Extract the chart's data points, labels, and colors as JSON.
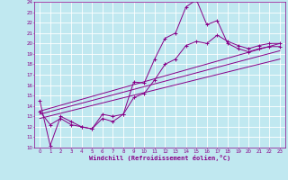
{
  "xlabel": "Windchill (Refroidissement éolien,°C)",
  "xlim": [
    -0.5,
    23.5
  ],
  "ylim": [
    10,
    24
  ],
  "xticks": [
    0,
    1,
    2,
    3,
    4,
    5,
    6,
    7,
    8,
    9,
    10,
    11,
    12,
    13,
    14,
    15,
    16,
    17,
    18,
    19,
    20,
    21,
    22,
    23
  ],
  "yticks": [
    10,
    11,
    12,
    13,
    14,
    15,
    16,
    17,
    18,
    19,
    20,
    21,
    22,
    23,
    24
  ],
  "bg_color": "#c0e8f0",
  "line_color": "#880088",
  "grid_color": "#ffffff",
  "curve1_x": [
    0,
    1,
    2,
    3,
    4,
    5,
    6,
    7,
    8,
    9,
    10,
    11,
    12,
    13,
    14,
    15,
    16,
    17,
    18,
    19,
    20,
    21,
    22,
    23
  ],
  "curve1_y": [
    14.5,
    10.2,
    13.0,
    12.5,
    12.0,
    11.8,
    13.2,
    13.0,
    13.2,
    16.3,
    16.2,
    18.5,
    20.5,
    21.0,
    23.5,
    24.2,
    21.8,
    22.2,
    20.0,
    19.5,
    19.2,
    19.5,
    19.7,
    19.7
  ],
  "curve2_x": [
    0,
    1,
    2,
    3,
    4,
    5,
    6,
    7,
    8,
    9,
    10,
    11,
    12,
    13,
    14,
    15,
    16,
    17,
    18,
    19,
    20,
    21,
    22,
    23
  ],
  "curve2_y": [
    13.5,
    12.2,
    12.8,
    12.2,
    12.0,
    11.8,
    12.8,
    12.5,
    13.2,
    14.8,
    15.2,
    16.5,
    18.0,
    18.5,
    19.8,
    20.2,
    20.0,
    20.8,
    20.2,
    19.8,
    19.5,
    19.8,
    20.0,
    20.0
  ],
  "line1_x": [
    0,
    23
  ],
  "line1_y": [
    13.5,
    20.0
  ],
  "line2_x": [
    0,
    23
  ],
  "line2_y": [
    13.2,
    19.3
  ],
  "line3_x": [
    0,
    23
  ],
  "line3_y": [
    12.8,
    18.5
  ]
}
